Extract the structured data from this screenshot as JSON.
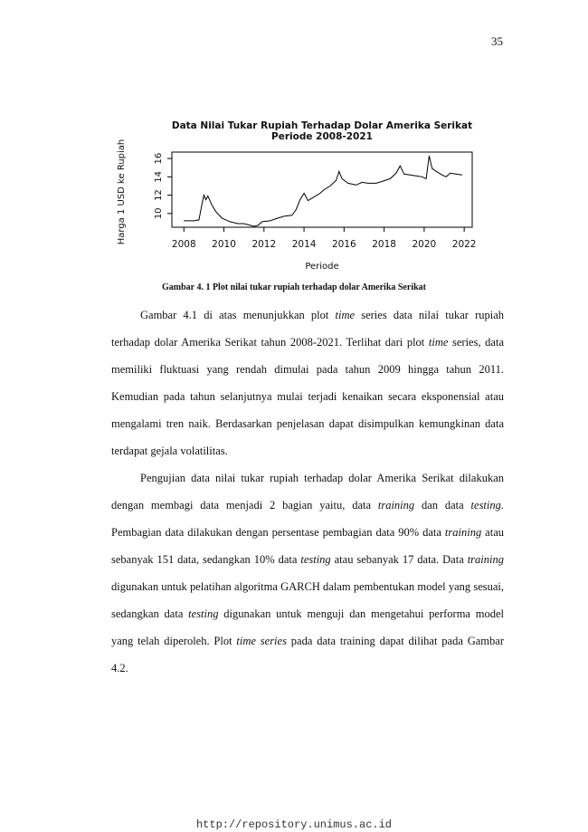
{
  "page_number": "35",
  "chart_data": {
    "type": "line",
    "title": "Data Nilai Tukar Rupiah Terhadap Dolar Amerika Serikat",
    "subtitle": "Periode 2008-2021",
    "x_label": "Periode",
    "y_label": "Harga 1 USD ke Rupiah",
    "x": [
      2008.0,
      2008.5,
      2008.75,
      2008.9,
      2009.0,
      2009.1,
      2009.2,
      2009.4,
      2009.6,
      2009.9,
      2010.3,
      2010.7,
      2011.0,
      2011.5,
      2011.7,
      2011.9,
      2012.3,
      2012.7,
      2013.0,
      2013.4,
      2013.6,
      2013.8,
      2014.0,
      2014.2,
      2014.5,
      2014.8,
      2015.0,
      2015.3,
      2015.6,
      2015.75,
      2015.9,
      2016.2,
      2016.6,
      2016.9,
      2017.2,
      2017.6,
      2017.9,
      2018.3,
      2018.6,
      2018.8,
      2019.0,
      2019.3,
      2019.6,
      2019.9,
      2020.1,
      2020.25,
      2020.4,
      2020.6,
      2020.9,
      2021.1,
      2021.3,
      2021.6,
      2021.9
    ],
    "values": [
      9.2,
      9.2,
      9.3,
      11.0,
      12.0,
      11.5,
      11.9,
      10.9,
      10.2,
      9.5,
      9.1,
      8.9,
      8.9,
      8.6,
      8.7,
      9.1,
      9.2,
      9.5,
      9.7,
      9.8,
      10.4,
      11.5,
      12.2,
      11.4,
      11.8,
      12.2,
      12.6,
      13.0,
      13.6,
      14.6,
      13.8,
      13.3,
      13.1,
      13.4,
      13.3,
      13.3,
      13.5,
      13.8,
      14.4,
      15.2,
      14.3,
      14.2,
      14.1,
      14.0,
      13.8,
      16.3,
      14.9,
      14.6,
      14.2,
      14.0,
      14.4,
      14.3,
      14.2
    ],
    "color": "#000000",
    "xlim": [
      2007.4,
      2022.4
    ],
    "xticks": [
      2008,
      2010,
      2012,
      2014,
      2016,
      2018,
      2020,
      2022
    ],
    "ylim": [
      8.5,
      16.7
    ],
    "yticks": [
      10,
      12,
      14,
      16
    ]
  },
  "caption": "Gambar 4. 1 Plot nilai tukar rupiah terhadap dolar Amerika Serikat",
  "paragraphs": [
    [
      {
        "text": "Gambar 4.1 di atas menunjukkan plot "
      },
      {
        "text": "time",
        "italic": true
      },
      {
        "text": " series data nilai tukar rupiah terhadap dolar Amerika Serikat tahun 2008-2021. Terlihat dari plot "
      },
      {
        "text": "time",
        "italic": true
      },
      {
        "text": " series, data memiliki fluktuasi yang rendah dimulai pada tahun 2009 hingga tahun 2011. Kemudian pada tahun selanjutnya mulai terjadi kenaikan secara eksponensial atau mengalami tren naik. Berdasarkan penjelasan dapat disimpulkan kemungkinan data terdapat gejala volatilitas."
      }
    ],
    [
      {
        "text": "Pengujian data nilai tukar rupiah terhadap dolar Amerika Serikat dilakukan dengan membagi data menjadi 2 bagian yaitu, data "
      },
      {
        "text": "training",
        "italic": true
      },
      {
        "text": " dan data "
      },
      {
        "text": "testing.",
        "italic": true
      },
      {
        "text": " Pembagian data dilakukan dengan persentase pembagian data 90% data "
      },
      {
        "text": "training",
        "italic": true
      },
      {
        "text": " atau sebanyak 151 data, sedangkan 10% data "
      },
      {
        "text": "testing",
        "italic": true
      },
      {
        "text": " atau sebanyak 17 data. Data "
      },
      {
        "text": "training",
        "italic": true
      },
      {
        "text": " digunakan untuk pelatihan algoritma GARCH dalam pembentukan model yang sesuai, sedangkan data "
      },
      {
        "text": "testing",
        "italic": true
      },
      {
        "text": " digunakan untuk menguji dan mengetahui performa model yang telah diperoleh.  Plot "
      },
      {
        "text": "time series",
        "italic": true
      },
      {
        "text": " pada data training dapat dilihat pada Gambar 4.2."
      }
    ]
  ],
  "footer": "http://repository.unimus.ac.id"
}
